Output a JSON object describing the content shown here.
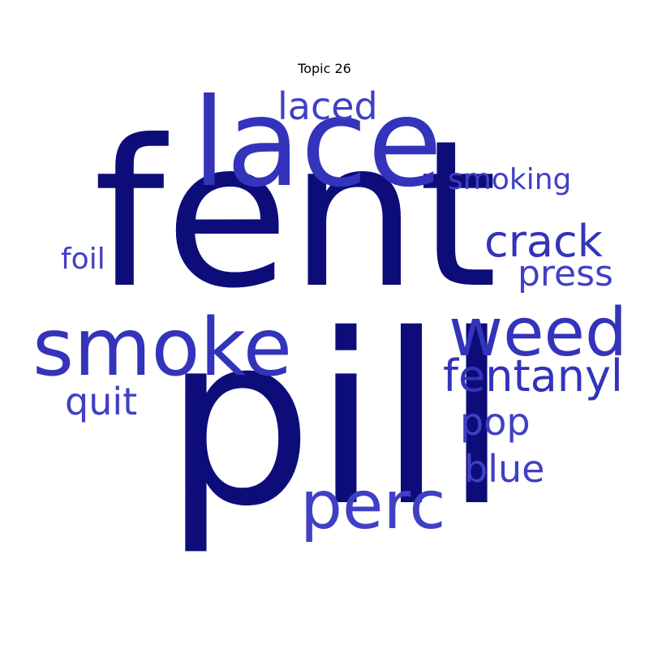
{
  "title": "Topic 26",
  "colors": {
    "dark": "#0d0d7a",
    "medium": "#3333bb",
    "light": "#4040c4"
  },
  "words": [
    {
      "text": "fent",
      "tone": "dark"
    },
    {
      "text": "pill",
      "tone": "dark"
    },
    {
      "text": "lace",
      "tone": "medium"
    },
    {
      "text": "smoke",
      "tone": "medium"
    },
    {
      "text": "weed",
      "tone": "medium"
    },
    {
      "text": "perc",
      "tone": "light"
    },
    {
      "text": "fentanyl",
      "tone": "medium"
    },
    {
      "text": "crack",
      "tone": "medium"
    },
    {
      "text": "laced",
      "tone": "light"
    },
    {
      "text": "press",
      "tone": "light"
    },
    {
      "text": "quit",
      "tone": "light"
    },
    {
      "text": "pop",
      "tone": "light"
    },
    {
      "text": "blue",
      "tone": "light"
    },
    {
      "text": "foil",
      "tone": "light"
    },
    {
      "text": "smoking",
      "tone": "light"
    }
  ]
}
